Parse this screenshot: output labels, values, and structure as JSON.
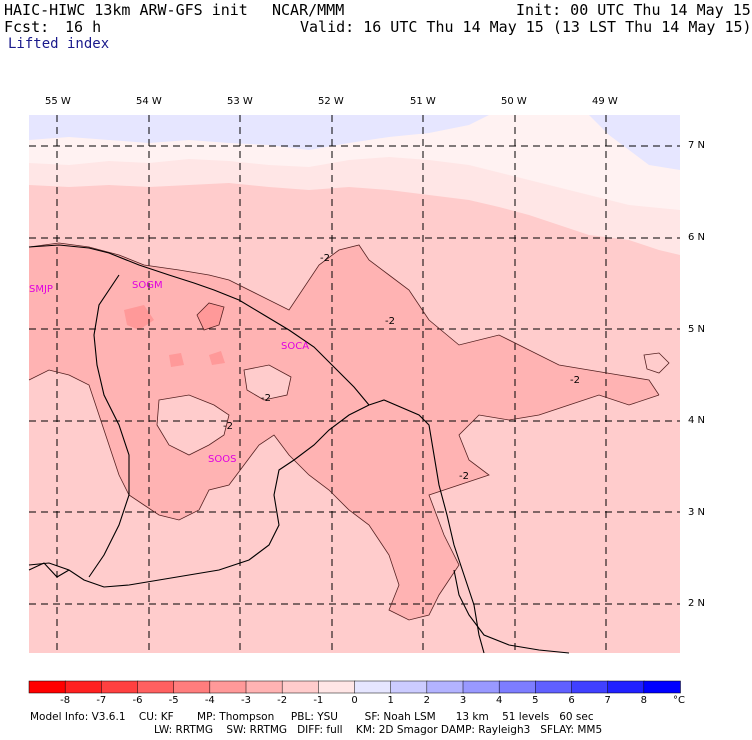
{
  "header": {
    "model_title": "HAIC-HIWC 13km ARW-GFS init",
    "org": "NCAR/MMM",
    "init_time": "Init: 00 UTC Thu 14 May 15",
    "fcst_label": "Fcst:",
    "fcst_value": "16 h",
    "valid_time": "Valid: 16 UTC Thu 14 May 15 (13 LST Thu 14 May 15)",
    "field_name": "Lifted index"
  },
  "map": {
    "longitude_labels": [
      "55 W",
      "54 W",
      "53 W",
      "52 W",
      "51 W",
      "50 W",
      "49 W"
    ],
    "latitude_labels": [
      "7 N",
      "6 N",
      "5 N",
      "4 N",
      "3 N",
      "2 N"
    ],
    "stations": [
      "SMJP",
      "SOGM",
      "SOCA",
      "SOOS"
    ],
    "contour_labels": [
      "-2",
      "-2",
      "-2",
      "-2",
      "-2",
      "-2"
    ]
  },
  "colorbar": {
    "tick_labels": [
      "-8",
      "-7",
      "-6",
      "-5",
      "-4",
      "-3",
      "-2",
      "-1",
      "0",
      "1",
      "2",
      "3",
      "4",
      "5",
      "6",
      "7",
      "8"
    ],
    "unit": "°C",
    "colors": [
      "#ff0000",
      "#ff2020",
      "#ff4040",
      "#ff6060",
      "#ff7d7d",
      "#ff9999",
      "#ffb3b3",
      "#ffcccc",
      "#ffe6e6",
      "#e6e6ff",
      "#ccccff",
      "#b3b3ff",
      "#9999ff",
      "#7d7dff",
      "#6060ff",
      "#4040ff",
      "#2020ff",
      "#0000ff"
    ]
  },
  "model_info": {
    "line1": "Model Info: V3.6.1    CU: KF       MP: Thompson     PBL: YSU        SF: Noah LSM      13 km    51 levels   60 sec",
    "line2": "LW: RRTMG    SW: RRTMG   DIFF: full    KM: 2D Smagor DAMP: Rayleigh3   SFLAY: MM5"
  }
}
